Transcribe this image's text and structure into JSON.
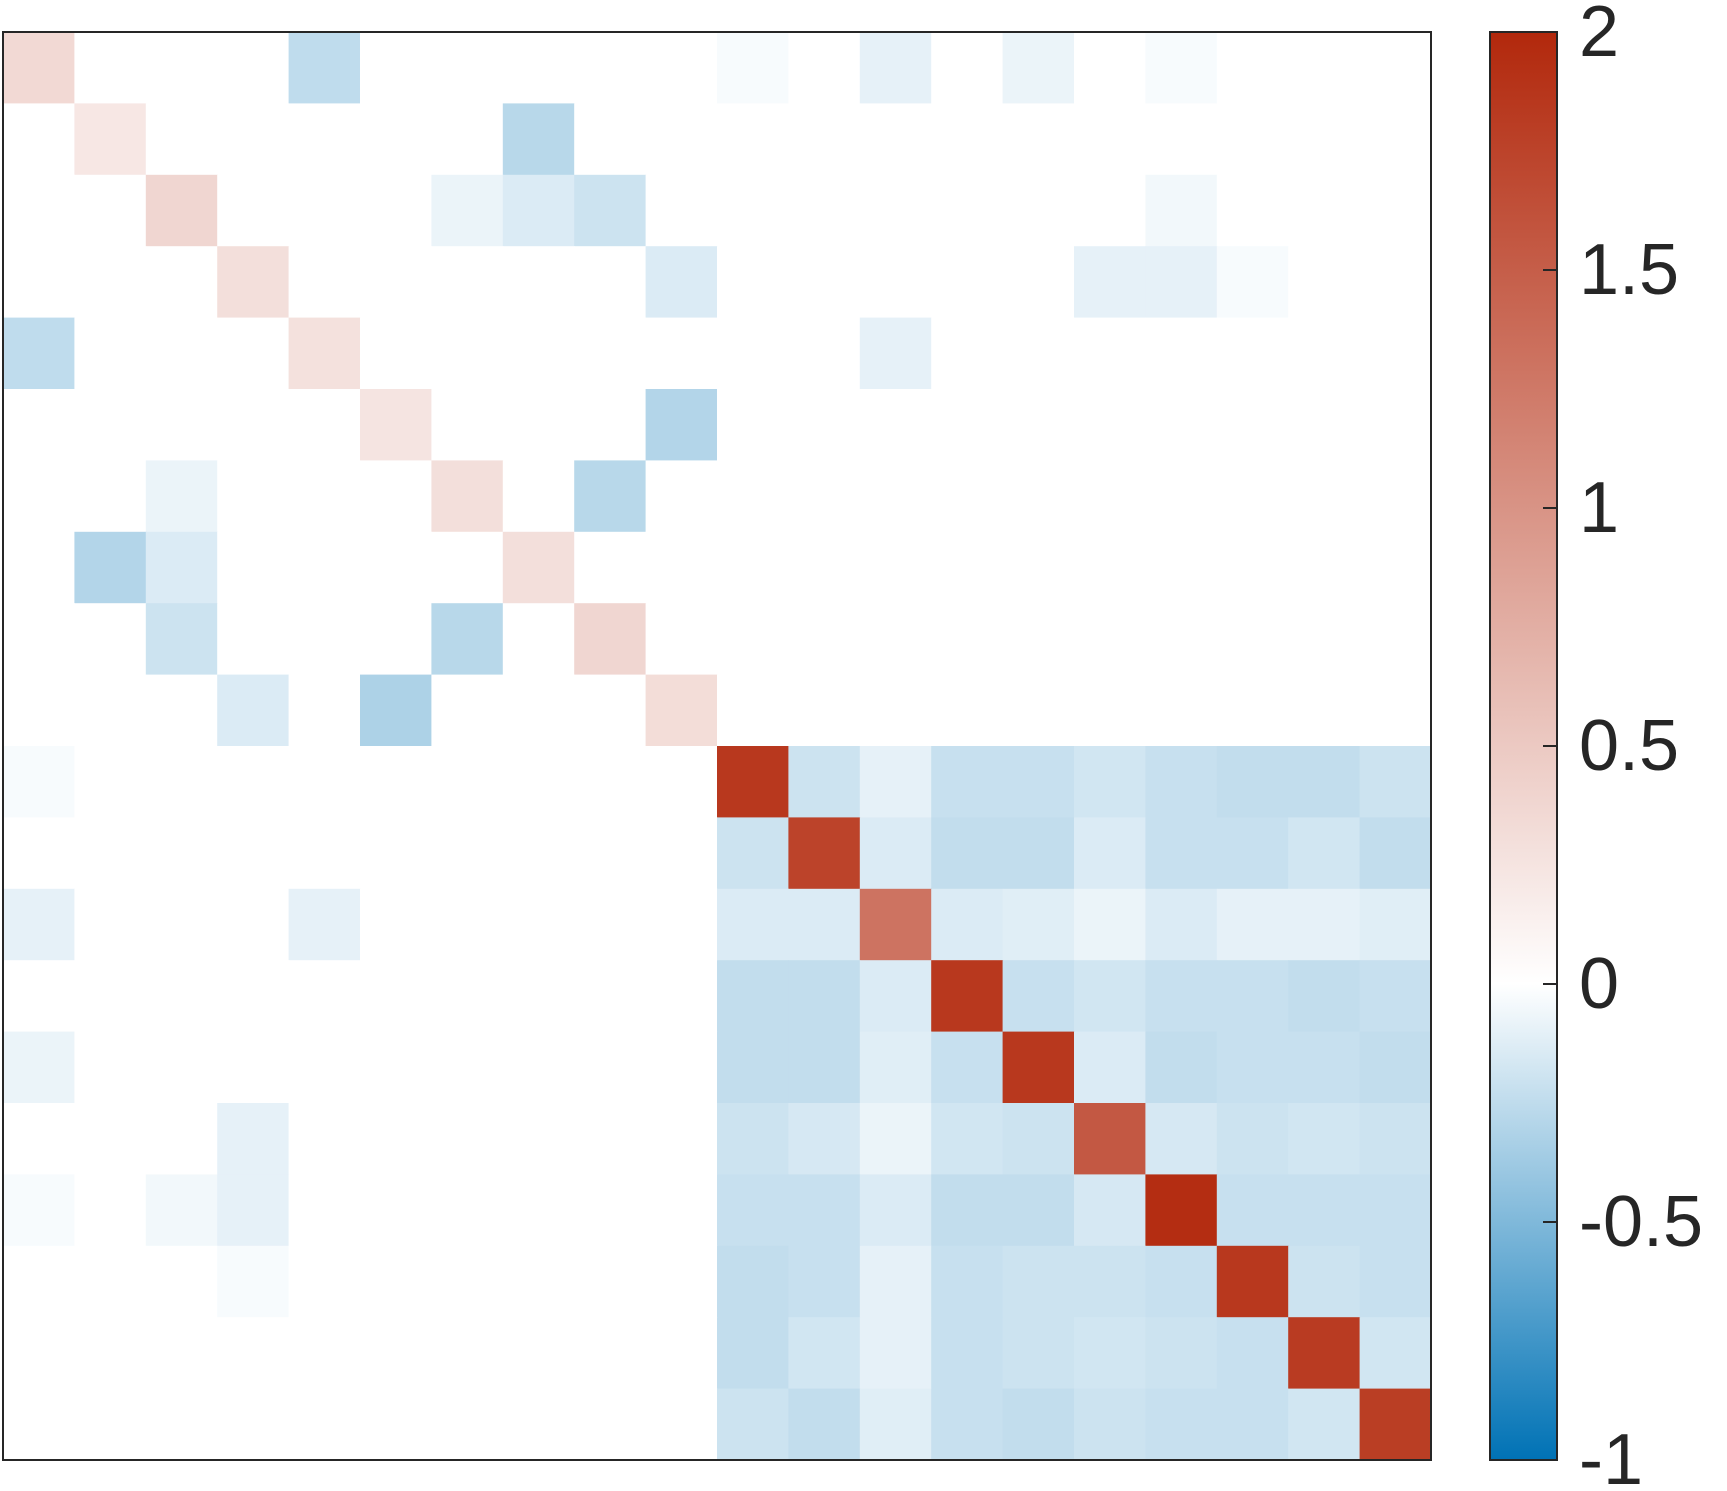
{
  "chart_data": {
    "type": "heatmap",
    "title": "",
    "xlabel": "",
    "ylabel": "",
    "n_rows": 20,
    "n_cols": 20,
    "colormap": {
      "min": -1,
      "mid": 0,
      "max": 2,
      "min_color": "#0072b5",
      "mid_color": "#ffffff",
      "max_color": "#b2280c"
    },
    "colorbar": {
      "range": [
        -1,
        2
      ],
      "ticks": [
        2,
        1.5,
        1,
        0.5,
        0,
        -0.5,
        -1
      ],
      "tick_labels": [
        "2",
        "1.5",
        "1",
        "0.5",
        "0",
        "-0.5",
        "-1"
      ],
      "placement": "right"
    },
    "matrix": [
      [
        0.35,
        0,
        0,
        0,
        -0.25,
        0,
        0,
        0,
        0,
        0,
        -0.03,
        0,
        -0.1,
        0,
        -0.08,
        0,
        -0.03,
        0,
        0,
        0
      ],
      [
        0,
        0.22,
        0,
        0,
        0,
        0,
        0,
        -0.28,
        0,
        0,
        0,
        0,
        0,
        0,
        0,
        0,
        0,
        0,
        0,
        0
      ],
      [
        0,
        0,
        0.38,
        0,
        0,
        0,
        -0.08,
        -0.14,
        -0.2,
        0,
        0,
        0,
        0,
        0,
        0,
        0,
        -0.05,
        0,
        0,
        0
      ],
      [
        0,
        0,
        0,
        0.3,
        0,
        0,
        0,
        0,
        0,
        -0.14,
        0,
        0,
        0,
        0,
        0,
        -0.1,
        -0.1,
        -0.03,
        0,
        0
      ],
      [
        -0.25,
        0,
        0,
        0,
        0.28,
        0,
        0,
        0,
        0,
        0,
        0,
        0,
        -0.1,
        0,
        0,
        0,
        0,
        0,
        0,
        0
      ],
      [
        0,
        0,
        0,
        0,
        0,
        0.25,
        0,
        0,
        0,
        -0.3,
        0,
        0,
        0,
        0,
        0,
        0,
        0,
        0,
        0,
        0
      ],
      [
        0,
        0,
        -0.08,
        0,
        0,
        0,
        0.3,
        0,
        -0.28,
        0,
        0,
        0,
        0,
        0,
        0,
        0,
        0,
        0,
        0,
        0
      ],
      [
        0,
        -0.3,
        -0.14,
        0,
        0,
        0,
        0,
        0.3,
        0,
        0,
        0,
        0,
        0,
        0,
        0,
        0,
        0,
        0,
        0,
        0
      ],
      [
        0,
        0,
        -0.2,
        0,
        0,
        0,
        -0.28,
        0,
        0.38,
        0,
        0,
        0,
        0,
        0,
        0,
        0,
        0,
        0,
        0,
        0
      ],
      [
        0,
        0,
        0,
        -0.14,
        0,
        -0.32,
        0,
        0,
        0,
        0.32,
        0,
        0,
        0,
        0,
        0,
        0,
        0,
        0,
        0,
        0
      ],
      [
        -0.03,
        0,
        0,
        0,
        0,
        0,
        0,
        0,
        0,
        0,
        1.85,
        -0.2,
        -0.1,
        -0.22,
        -0.22,
        -0.18,
        -0.22,
        -0.24,
        -0.24,
        -0.2
      ],
      [
        0,
        0,
        0,
        0,
        0,
        0,
        0,
        0,
        0,
        0,
        -0.2,
        1.75,
        -0.14,
        -0.24,
        -0.24,
        -0.14,
        -0.22,
        -0.22,
        -0.18,
        -0.24
      ],
      [
        -0.1,
        0,
        0,
        0,
        -0.1,
        0,
        0,
        0,
        0,
        0,
        -0.14,
        -0.14,
        1.3,
        -0.14,
        -0.12,
        -0.08,
        -0.14,
        -0.1,
        -0.1,
        -0.12
      ],
      [
        0,
        0,
        0,
        0,
        0,
        0,
        0,
        0,
        0,
        0,
        -0.24,
        -0.24,
        -0.14,
        1.85,
        -0.22,
        -0.18,
        -0.22,
        -0.22,
        -0.24,
        -0.22
      ],
      [
        -0.08,
        0,
        0,
        0,
        0,
        0,
        0,
        0,
        0,
        0,
        -0.24,
        -0.24,
        -0.12,
        -0.22,
        1.85,
        -0.14,
        -0.24,
        -0.22,
        -0.22,
        -0.24
      ],
      [
        0,
        0,
        0,
        -0.1,
        0,
        0,
        0,
        0,
        0,
        0,
        -0.2,
        -0.16,
        -0.08,
        -0.18,
        -0.2,
        1.55,
        -0.16,
        -0.2,
        -0.18,
        -0.2
      ],
      [
        -0.03,
        0,
        -0.05,
        -0.1,
        0,
        0,
        0,
        0,
        0,
        0,
        -0.22,
        -0.22,
        -0.14,
        -0.24,
        -0.24,
        -0.16,
        1.95,
        -0.22,
        -0.22,
        -0.22
      ],
      [
        0,
        0,
        0,
        -0.03,
        0,
        0,
        0,
        0,
        0,
        0,
        -0.24,
        -0.22,
        -0.1,
        -0.22,
        -0.2,
        -0.2,
        -0.22,
        1.85,
        -0.2,
        -0.22
      ],
      [
        0,
        0,
        0,
        0,
        0,
        0,
        0,
        0,
        0,
        0,
        -0.24,
        -0.18,
        -0.1,
        -0.22,
        -0.2,
        -0.18,
        -0.2,
        -0.22,
        1.82,
        -0.18
      ],
      [
        0,
        0,
        0,
        0,
        0,
        0,
        0,
        0,
        0,
        0,
        -0.2,
        -0.24,
        -0.12,
        -0.22,
        -0.24,
        -0.2,
        -0.22,
        -0.22,
        -0.18,
        1.8
      ]
    ]
  }
}
